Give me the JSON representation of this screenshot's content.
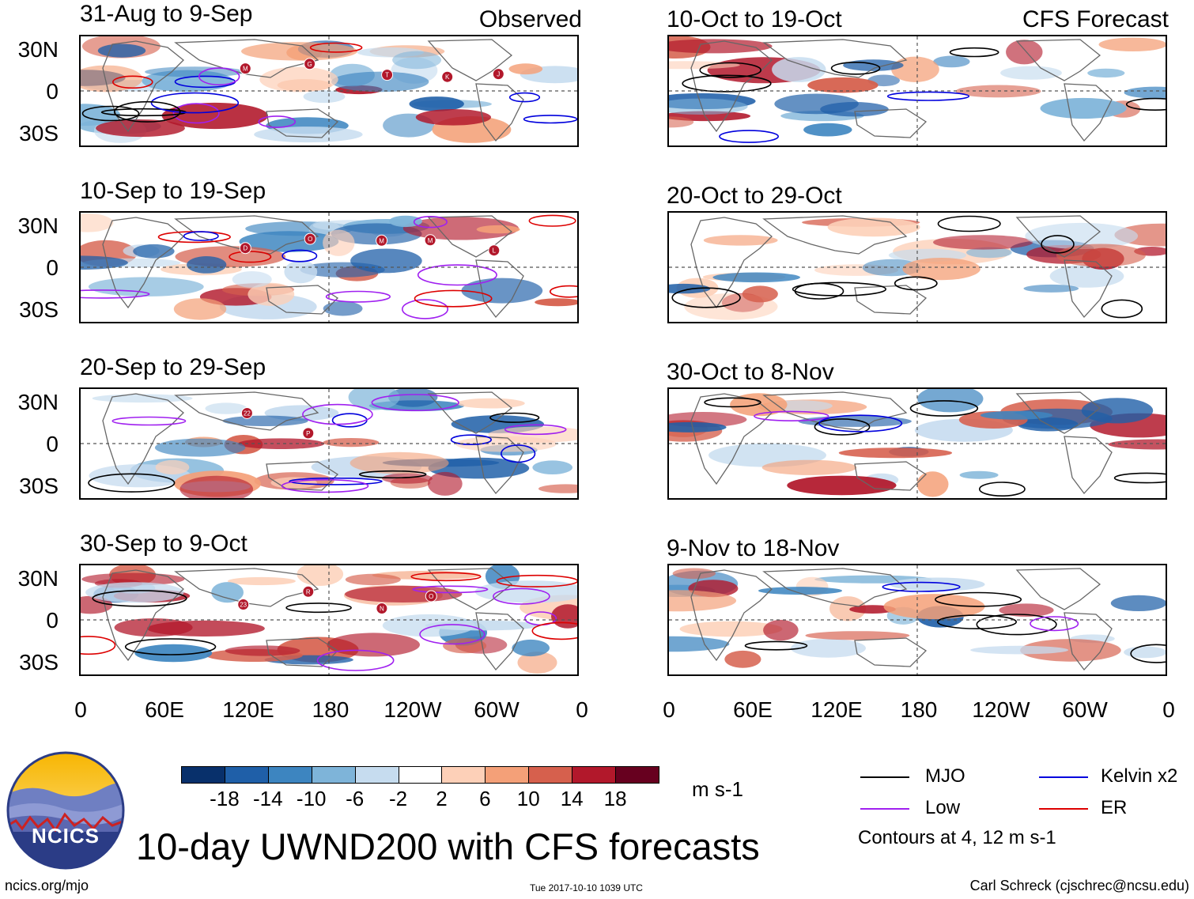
{
  "observed_label": "Observed",
  "forecast_label": "CFS Forecast",
  "lat_labels": [
    "30N",
    "0",
    "30S"
  ],
  "lon_labels": [
    "0",
    "60E",
    "120E",
    "180",
    "120W",
    "60W",
    "0"
  ],
  "left_panels": [
    {
      "title": "31-Aug to 9-Sep"
    },
    {
      "title": "10-Sep to 19-Sep"
    },
    {
      "title": "20-Sep to 29-Sep"
    },
    {
      "title": "30-Sep to 9-Oct"
    }
  ],
  "right_panels": [
    {
      "title": "10-Oct to 19-Oct"
    },
    {
      "title": "20-Oct to 29-Oct"
    },
    {
      "title": "30-Oct to 8-Nov"
    },
    {
      "title": "9-Nov to 18-Nov"
    }
  ],
  "colorbar": {
    "labels": [
      "-18",
      "-14",
      "-10",
      "-6",
      "-2",
      "2",
      "6",
      "10",
      "14",
      "18"
    ],
    "colors": [
      "#08306b",
      "#1f5fa8",
      "#3d85c0",
      "#7eb4d9",
      "#c6dcef",
      "#ffffff",
      "#fdd0b8",
      "#f4a078",
      "#d6604d",
      "#b2182b",
      "#67001f"
    ],
    "unit": "m s-1"
  },
  "legend": {
    "items": [
      {
        "label": "MJO",
        "color": "#000000"
      },
      {
        "label": "Kelvin x2",
        "color": "#0000dd"
      },
      {
        "label": "Low",
        "color": "#a020f0"
      },
      {
        "label": "ER",
        "color": "#dd0000"
      }
    ],
    "note": "Contours at 4, 12 m s-1"
  },
  "logo_text": "NCICS",
  "main_title": "10-day UWND200 with CFS forecasts",
  "footer": {
    "left": "ncics.org/mjo",
    "center": "Tue 2017-10-10 1039 UTC",
    "right": "Carl Schreck (cjschrec@ncsu.edu)"
  },
  "storm_markers": [
    [
      "M",
      "G",
      "T",
      "K",
      "J"
    ],
    [
      "D",
      "O",
      "M",
      "M",
      "L"
    ],
    [
      "22",
      "P"
    ],
    [
      "23",
      "R",
      "N",
      "O"
    ],
    [],
    [],
    [],
    []
  ]
}
